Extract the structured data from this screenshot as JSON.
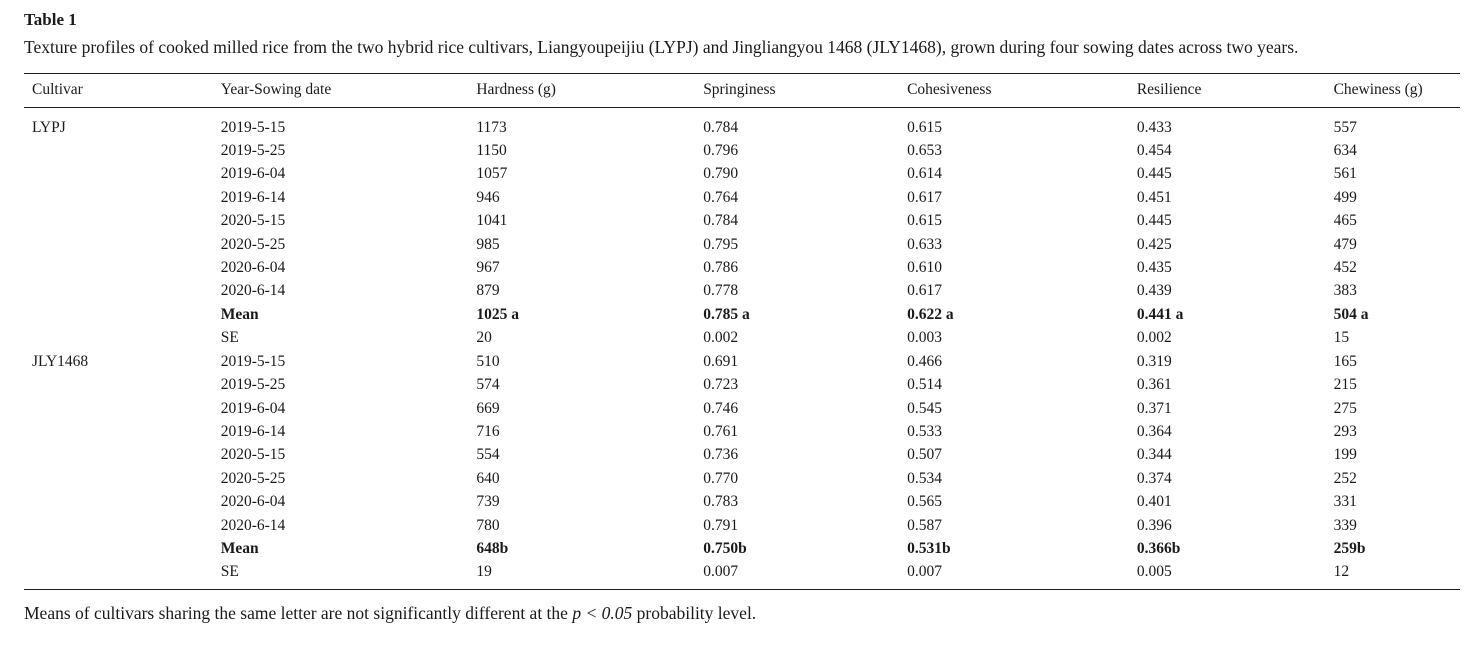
{
  "table": {
    "label": "Table 1",
    "caption": "Texture profiles of cooked milled rice from the two hybrid rice cultivars, Liangyoupeijiu (LYPJ) and Jingliangyou 1468 (JLY1468), grown during four sowing dates across two years.",
    "columns": [
      "Cultivar",
      "Year-Sowing date",
      "Hardness (g)",
      "Springiness",
      "Cohesiveness",
      "Resilience",
      "Chewiness (g)"
    ],
    "rows": [
      {
        "cultivar": "LYPJ",
        "date": "2019-5-15",
        "hardness": "1173",
        "springiness": "0.784",
        "cohesiveness": "0.615",
        "resilience": "0.433",
        "chewiness": "557",
        "bold": false
      },
      {
        "cultivar": "",
        "date": "2019-5-25",
        "hardness": "1150",
        "springiness": "0.796",
        "cohesiveness": "0.653",
        "resilience": "0.454",
        "chewiness": "634",
        "bold": false
      },
      {
        "cultivar": "",
        "date": "2019-6-04",
        "hardness": "1057",
        "springiness": "0.790",
        "cohesiveness": "0.614",
        "resilience": "0.445",
        "chewiness": "561",
        "bold": false
      },
      {
        "cultivar": "",
        "date": "2019-6-14",
        "hardness": "946",
        "springiness": "0.764",
        "cohesiveness": "0.617",
        "resilience": "0.451",
        "chewiness": "499",
        "bold": false
      },
      {
        "cultivar": "",
        "date": "2020-5-15",
        "hardness": "1041",
        "springiness": "0.784",
        "cohesiveness": "0.615",
        "resilience": "0.445",
        "chewiness": "465",
        "bold": false
      },
      {
        "cultivar": "",
        "date": "2020-5-25",
        "hardness": "985",
        "springiness": "0.795",
        "cohesiveness": "0.633",
        "resilience": "0.425",
        "chewiness": "479",
        "bold": false
      },
      {
        "cultivar": "",
        "date": "2020-6-04",
        "hardness": "967",
        "springiness": "0.786",
        "cohesiveness": "0.610",
        "resilience": "0.435",
        "chewiness": "452",
        "bold": false
      },
      {
        "cultivar": "",
        "date": "2020-6-14",
        "hardness": "879",
        "springiness": "0.778",
        "cohesiveness": "0.617",
        "resilience": "0.439",
        "chewiness": "383",
        "bold": false
      },
      {
        "cultivar": "",
        "date": "Mean",
        "hardness": "1025 a",
        "springiness": "0.785 a",
        "cohesiveness": "0.622 a",
        "resilience": "0.441 a",
        "chewiness": "504 a",
        "bold": true
      },
      {
        "cultivar": "",
        "date": "SE",
        "hardness": "20",
        "springiness": "0.002",
        "cohesiveness": "0.003",
        "resilience": "0.002",
        "chewiness": "15",
        "bold": false
      },
      {
        "cultivar": "JLY1468",
        "date": "2019-5-15",
        "hardness": "510",
        "springiness": "0.691",
        "cohesiveness": "0.466",
        "resilience": "0.319",
        "chewiness": "165",
        "bold": false
      },
      {
        "cultivar": "",
        "date": "2019-5-25",
        "hardness": "574",
        "springiness": "0.723",
        "cohesiveness": "0.514",
        "resilience": "0.361",
        "chewiness": "215",
        "bold": false
      },
      {
        "cultivar": "",
        "date": "2019-6-04",
        "hardness": "669",
        "springiness": "0.746",
        "cohesiveness": "0.545",
        "resilience": "0.371",
        "chewiness": "275",
        "bold": false
      },
      {
        "cultivar": "",
        "date": "2019-6-14",
        "hardness": "716",
        "springiness": "0.761",
        "cohesiveness": "0.533",
        "resilience": "0.364",
        "chewiness": "293",
        "bold": false
      },
      {
        "cultivar": "",
        "date": "2020-5-15",
        "hardness": "554",
        "springiness": "0.736",
        "cohesiveness": "0.507",
        "resilience": "0.344",
        "chewiness": "199",
        "bold": false
      },
      {
        "cultivar": "",
        "date": "2020-5-25",
        "hardness": "640",
        "springiness": "0.770",
        "cohesiveness": "0.534",
        "resilience": "0.374",
        "chewiness": "252",
        "bold": false
      },
      {
        "cultivar": "",
        "date": "2020-6-04",
        "hardness": "739",
        "springiness": "0.783",
        "cohesiveness": "0.565",
        "resilience": "0.401",
        "chewiness": "331",
        "bold": false
      },
      {
        "cultivar": "",
        "date": "2020-6-14",
        "hardness": "780",
        "springiness": "0.791",
        "cohesiveness": "0.587",
        "resilience": "0.396",
        "chewiness": "339",
        "bold": false
      },
      {
        "cultivar": "",
        "date": "Mean",
        "hardness": "648b",
        "springiness": "0.750b",
        "cohesiveness": "0.531b",
        "resilience": "0.366b",
        "chewiness": "259b",
        "bold": true
      },
      {
        "cultivar": "",
        "date": "SE",
        "hardness": "19",
        "springiness": "0.007",
        "cohesiveness": "0.007",
        "resilience": "0.005",
        "chewiness": "12",
        "bold": false
      }
    ],
    "footnote": {
      "prefix": "Means of cultivars sharing the same letter are not significantly different at the ",
      "italic": "p < 0.05",
      "suffix": " probability level."
    }
  }
}
